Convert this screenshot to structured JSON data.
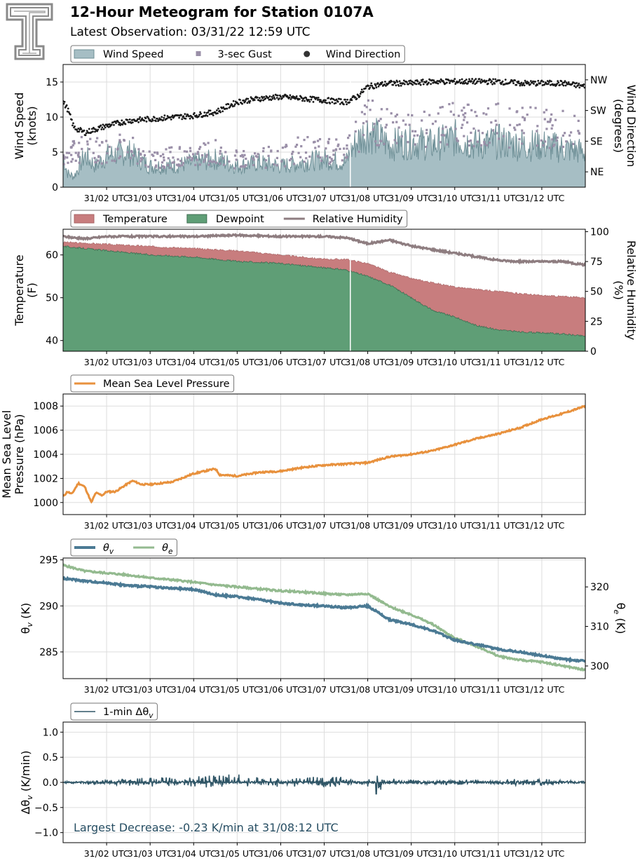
{
  "header": {
    "title": "12-Hour Meteogram for Station 0107A",
    "subtitle": "Latest Observation: 03/31/22 12:59 UTC",
    "logo_text": "T"
  },
  "x_tick_labels": [
    "31/02 UTC",
    "31/03 UTC",
    "31/04 UTC",
    "31/05 UTC",
    "31/06 UTC",
    "31/07 UTC",
    "31/08 UTC",
    "31/09 UTC",
    "31/10 UTC",
    "31/11 UTC",
    "31/12 UTC"
  ],
  "colors": {
    "wind_fill": "#a6bec4",
    "wind_line": "#6e8f96",
    "gust": "#9a8fa8",
    "direction": "#1a1a1a",
    "temperature": "#c87d7e",
    "dewpoint": "#5f9e76",
    "rh": "#8e7d80",
    "mslp": "#e8913d",
    "theta_v": "#4b7a94",
    "theta_e": "#93ba8f",
    "dtheta": "#2f5566",
    "annotation": "#274e63",
    "grid": "#dddddd"
  },
  "chart_data": [
    {
      "type": "area",
      "name": "wind",
      "x_range": [
        1,
        13
      ],
      "ylabel_left": "Wind Speed\n(knots)",
      "ylabel_right": "Wind Direction\n(degrees)",
      "ylim": [
        0,
        17.5
      ],
      "yticks": [
        0,
        5,
        10,
        15
      ],
      "right_ticks": [
        {
          "value": 45,
          "label": "NE"
        },
        {
          "value": 135,
          "label": "SE"
        },
        {
          "value": 225,
          "label": "SW"
        },
        {
          "value": 315,
          "label": "NW"
        }
      ],
      "right_ylim": [
        0,
        360
      ],
      "legend": [
        "Wind Speed",
        "3-sec Gust",
        "Wind Direction"
      ],
      "series": [
        {
          "name": "Wind Speed",
          "x": [
            1.0,
            1.1,
            1.25,
            1.5,
            1.75,
            2.0,
            2.5,
            3.0,
            3.5,
            4.0,
            4.5,
            5.0,
            5.5,
            6.0,
            6.5,
            7.0,
            7.5,
            7.6,
            7.75,
            8.0,
            8.5,
            9.0,
            9.5,
            10.0,
            10.5,
            11.0,
            11.5,
            12.0,
            12.5,
            13.0
          ],
          "values": [
            4.5,
            2.0,
            1.5,
            4.5,
            3.0,
            4.5,
            5.0,
            3.0,
            3.0,
            3.5,
            4.0,
            3.0,
            3.5,
            3.0,
            3.5,
            4.0,
            3.5,
            5.0,
            6.5,
            8.0,
            6.0,
            6.5,
            6.0,
            7.0,
            6.0,
            6.5,
            6.0,
            6.0,
            5.5,
            5.0
          ]
        },
        {
          "name": "3-sec Gust",
          "x": [
            1.0,
            1.5,
            2.0,
            2.5,
            3.0,
            3.5,
            4.0,
            4.5,
            5.0,
            5.5,
            6.0,
            6.5,
            7.0,
            7.5,
            8.0,
            8.5,
            9.0,
            9.5,
            10.0,
            10.5,
            11.0,
            11.5,
            12.0,
            12.5,
            13.0
          ],
          "values": [
            5,
            6.5,
            6,
            7,
            4.5,
            5,
            5,
            6,
            4.5,
            5,
            5,
            6.5,
            6,
            6,
            11,
            10,
            10.5,
            10,
            11,
            10,
            10.5,
            10,
            10,
            9.5,
            9
          ]
        },
        {
          "name": "Wind Direction",
          "x": [
            1.0,
            1.1,
            1.25,
            1.5,
            1.75,
            2.0,
            2.5,
            3.0,
            3.5,
            4.0,
            4.5,
            5.0,
            5.5,
            6.0,
            6.5,
            7.0,
            7.5,
            7.75,
            8.0,
            8.5,
            9.0,
            9.5,
            10.0,
            10.5,
            11.0,
            11.5,
            12.0,
            12.5,
            13.0
          ],
          "values": [
            250,
            230,
            175,
            160,
            170,
            180,
            195,
            200,
            205,
            210,
            220,
            250,
            260,
            265,
            260,
            255,
            250,
            265,
            295,
            305,
            305,
            310,
            310,
            310,
            310,
            305,
            305,
            305,
            295
          ]
        }
      ]
    },
    {
      "type": "area",
      "name": "temperature",
      "x_range": [
        1,
        13
      ],
      "ylabel_left": "Temperature\n(F)",
      "ylabel_right": "Relative Humidity\n(%)",
      "ylim": [
        37.5,
        66
      ],
      "yticks": [
        40,
        50,
        60
      ],
      "right_ylim": [
        0,
        102
      ],
      "right_yticks": [
        0,
        25,
        50,
        75,
        100
      ],
      "legend": [
        "Temperature",
        "Dewpoint",
        "Relative Humidity"
      ],
      "series": [
        {
          "name": "Temperature",
          "x": [
            1,
            2,
            3,
            4,
            5,
            6,
            7,
            7.5,
            8,
            8.5,
            9,
            9.5,
            10,
            10.5,
            11,
            11.5,
            12,
            12.5,
            13
          ],
          "values": [
            63,
            62.5,
            62,
            61.5,
            61,
            60,
            59,
            59,
            58,
            56,
            54.5,
            53.5,
            52.5,
            52,
            51.5,
            51,
            50.5,
            50.3,
            50
          ]
        },
        {
          "name": "Dewpoint",
          "x": [
            1,
            1.5,
            2,
            3,
            4,
            5,
            6,
            7,
            7.5,
            8,
            8.5,
            9,
            9.5,
            10,
            10.5,
            11,
            11.5,
            12,
            12.5,
            13
          ],
          "values": [
            62,
            61.5,
            61,
            60,
            59.5,
            58.5,
            58,
            57,
            56.5,
            55,
            53,
            50,
            47,
            45.5,
            43.5,
            42.5,
            42,
            41.8,
            41.5,
            41
          ]
        },
        {
          "name": "Relative Humidity",
          "x": [
            1,
            1.5,
            2,
            3,
            4,
            5,
            6,
            7,
            7.5,
            8,
            8.5,
            9,
            9.5,
            10,
            10.5,
            11,
            11.5,
            12,
            12.5,
            13
          ],
          "values": [
            96,
            94,
            96,
            96,
            96,
            97,
            96,
            96,
            95,
            90,
            93,
            88,
            85,
            82,
            79,
            76,
            75,
            75,
            75,
            72
          ]
        }
      ]
    },
    {
      "type": "line",
      "name": "pressure",
      "x_range": [
        1,
        13
      ],
      "ylabel_left": "Mean Sea Level\nPressure (hPa)",
      "ylim": [
        999,
        1009
      ],
      "yticks": [
        1000,
        1002,
        1004,
        1006,
        1008
      ],
      "legend": [
        "Mean Sea Level Pressure"
      ],
      "series": [
        {
          "name": "Mean Sea Level Pressure",
          "x": [
            1.0,
            1.1,
            1.2,
            1.35,
            1.5,
            1.65,
            1.75,
            1.9,
            2.0,
            2.2,
            2.5,
            2.6,
            2.8,
            3.0,
            3.5,
            4.0,
            4.5,
            4.6,
            5.0,
            5.5,
            6.0,
            6.5,
            7.0,
            7.5,
            8.0,
            8.5,
            9.0,
            9.5,
            10.0,
            10.5,
            11.0,
            11.5,
            12.0,
            12.5,
            13.0
          ],
          "values": [
            1000.5,
            1000.9,
            1000.7,
            1001.6,
            1001.3,
            1000.0,
            1000.8,
            1000.6,
            1000.9,
            1000.9,
            1001.6,
            1001.8,
            1001.5,
            1001.5,
            1001.7,
            1002.4,
            1002.8,
            1002.3,
            1002.2,
            1002.5,
            1002.6,
            1002.9,
            1003.1,
            1003.2,
            1003.3,
            1003.8,
            1004.0,
            1004.3,
            1004.8,
            1005.3,
            1005.7,
            1006.2,
            1006.9,
            1007.4,
            1008.0
          ]
        }
      ]
    },
    {
      "type": "line",
      "name": "theta",
      "x_range": [
        1,
        13
      ],
      "ylabel_left": "θv (K)",
      "ylabel_right": "θe (K)",
      "ylim": [
        282.1,
        295.2
      ],
      "yticks": [
        285,
        290,
        295
      ],
      "right_ylim": [
        296.8,
        327.3
      ],
      "right_yticks": [
        300,
        310,
        320
      ],
      "legend": [
        "θv",
        "θe"
      ],
      "series": [
        {
          "name": "θv",
          "x": [
            1,
            1.5,
            2,
            2.5,
            3,
            3.5,
            4,
            4.5,
            5,
            5.5,
            6,
            6.5,
            7,
            7.5,
            8,
            8.5,
            9,
            9.5,
            10,
            10.5,
            11,
            11.5,
            12,
            12.5,
            13
          ],
          "values": [
            293,
            292.7,
            292.5,
            292.2,
            292.1,
            291.9,
            291.8,
            291.2,
            291.0,
            290.7,
            290.3,
            290.1,
            290.0,
            289.8,
            290.0,
            288.5,
            288.0,
            287.3,
            286.3,
            285.8,
            285.3,
            285.0,
            284.6,
            284.2,
            284.0
          ]
        },
        {
          "name": "θe",
          "x": [
            1,
            1.5,
            2,
            2.5,
            3,
            3.5,
            4,
            4.5,
            5,
            5.5,
            6,
            6.5,
            7,
            7.5,
            8,
            8.5,
            9,
            9.5,
            10,
            10.5,
            11,
            11.5,
            12,
            12.5,
            13
          ],
          "values": [
            325.5,
            324,
            323.5,
            323,
            322.3,
            321.8,
            321.2,
            320.5,
            320,
            319.5,
            319,
            318.7,
            318.3,
            318,
            318.3,
            315,
            313,
            310.5,
            307,
            305,
            302.5,
            301.5,
            301,
            300,
            299
          ]
        }
      ]
    },
    {
      "type": "line",
      "name": "dtheta",
      "x_range": [
        1,
        13
      ],
      "ylabel_left": "Δθv (K/min)",
      "ylim": [
        -1.2,
        1.2
      ],
      "yticks": [
        -1.0,
        -0.5,
        0.0,
        0.5,
        1.0
      ],
      "ytick_labels": [
        "−1.0",
        "−0.5",
        "0.0",
        "0.5",
        "1.0"
      ],
      "legend": [
        "1-min Δθv"
      ],
      "annotation": "Largest Decrease: -0.23 K/min at 31/08:12 UTC",
      "series": [
        {
          "name": "1-min Δθv",
          "x": [
            1.0,
            2.0,
            3.0,
            4.0,
            4.5,
            5.0,
            5.5,
            6.0,
            7.0,
            7.5,
            8.0,
            8.1,
            8.2,
            9.0,
            10.0,
            11.0,
            11.9,
            12.5,
            13.0
          ],
          "values": [
            0,
            0.05,
            0.1,
            0.1,
            0.15,
            0.2,
            0.1,
            0.1,
            0.1,
            0.1,
            -0.1,
            0.05,
            -0.23,
            0.05,
            0.05,
            0.05,
            0.1,
            0.03,
            0.02
          ],
          "amplitude_envelope": true
        }
      ]
    }
  ]
}
